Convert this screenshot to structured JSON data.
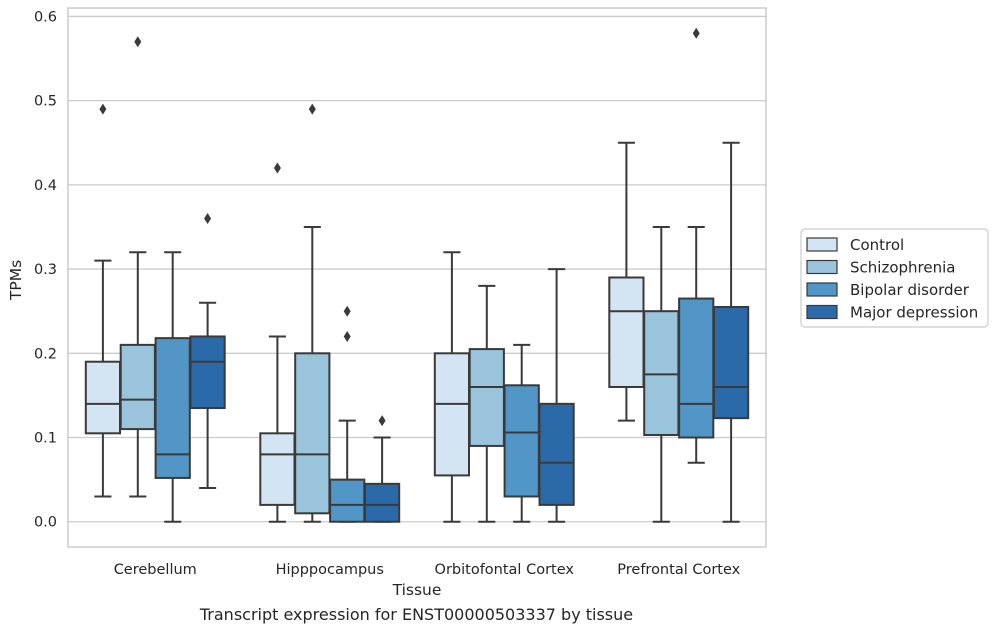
{
  "chart_data": {
    "type": "box",
    "xlabel": "Tissue",
    "ylabel": "TPMs",
    "ylim": [
      -0.03,
      0.61
    ],
    "yticks": [
      0.0,
      0.1,
      0.2,
      0.3,
      0.4,
      0.5,
      0.6
    ],
    "ytick_labels": [
      "0.0",
      "0.1",
      "0.2",
      "0.3",
      "0.4",
      "0.5",
      "0.6"
    ],
    "grid": true,
    "legend_position": "right",
    "categories": [
      "Cerebellum",
      "Hipppocampus",
      "Orbitofontal Cortex",
      "Prefrontal Cortex"
    ],
    "series": [
      {
        "name": "Control",
        "color": "#d3e4f3",
        "boxes": [
          {
            "whislo": 0.03,
            "q1": 0.105,
            "med": 0.14,
            "q3": 0.19,
            "whishi": 0.31,
            "fliers": [
              0.49
            ]
          },
          {
            "whislo": 0.0,
            "q1": 0.02,
            "med": 0.08,
            "q3": 0.105,
            "whishi": 0.22,
            "fliers": [
              0.42
            ]
          },
          {
            "whislo": 0.0,
            "q1": 0.055,
            "med": 0.14,
            "q3": 0.2,
            "whishi": 0.32,
            "fliers": []
          },
          {
            "whislo": 0.12,
            "q1": 0.16,
            "med": 0.25,
            "q3": 0.29,
            "whishi": 0.45,
            "fliers": []
          }
        ]
      },
      {
        "name": "Schizophrenia",
        "color": "#9ac3dc",
        "boxes": [
          {
            "whislo": 0.03,
            "q1": 0.11,
            "med": 0.145,
            "q3": 0.21,
            "whishi": 0.32,
            "fliers": [
              0.57
            ]
          },
          {
            "whislo": 0.0,
            "q1": 0.01,
            "med": 0.08,
            "q3": 0.2,
            "whishi": 0.35,
            "fliers": [
              0.49
            ]
          },
          {
            "whislo": 0.0,
            "q1": 0.09,
            "med": 0.16,
            "q3": 0.205,
            "whishi": 0.28,
            "fliers": []
          },
          {
            "whislo": 0.0,
            "q1": 0.103,
            "med": 0.175,
            "q3": 0.25,
            "whishi": 0.35,
            "fliers": []
          }
        ]
      },
      {
        "name": "Bipolar disorder",
        "color": "#5196c6",
        "boxes": [
          {
            "whislo": 0.0,
            "q1": 0.052,
            "med": 0.08,
            "q3": 0.218,
            "whishi": 0.32,
            "fliers": []
          },
          {
            "whislo": 0.0,
            "q1": 0.0,
            "med": 0.02,
            "q3": 0.05,
            "whishi": 0.12,
            "fliers": [
              0.22,
              0.25
            ]
          },
          {
            "whislo": 0.0,
            "q1": 0.03,
            "med": 0.106,
            "q3": 0.162,
            "whishi": 0.21,
            "fliers": []
          },
          {
            "whislo": 0.07,
            "q1": 0.1,
            "med": 0.14,
            "q3": 0.265,
            "whishi": 0.35,
            "fliers": [
              0.58
            ]
          }
        ]
      },
      {
        "name": "Major depression",
        "color": "#2a6aa9",
        "boxes": [
          {
            "whislo": 0.04,
            "q1": 0.135,
            "med": 0.19,
            "q3": 0.22,
            "whishi": 0.26,
            "fliers": [
              0.36
            ]
          },
          {
            "whislo": 0.0,
            "q1": 0.0,
            "med": 0.02,
            "q3": 0.045,
            "whishi": 0.1,
            "fliers": [
              0.12
            ]
          },
          {
            "whislo": 0.0,
            "q1": 0.02,
            "med": 0.07,
            "q3": 0.14,
            "whishi": 0.3,
            "fliers": []
          },
          {
            "whislo": 0.0,
            "q1": 0.123,
            "med": 0.16,
            "q3": 0.255,
            "whishi": 0.45,
            "fliers": []
          }
        ]
      }
    ]
  },
  "caption": "Transcript expression for ENST00000503337 by tissue",
  "colors": {
    "grid": "#cccccc",
    "spine": "#cccccc",
    "box_edge": "#3a3a3a",
    "flier": "#3a3a3a"
  }
}
